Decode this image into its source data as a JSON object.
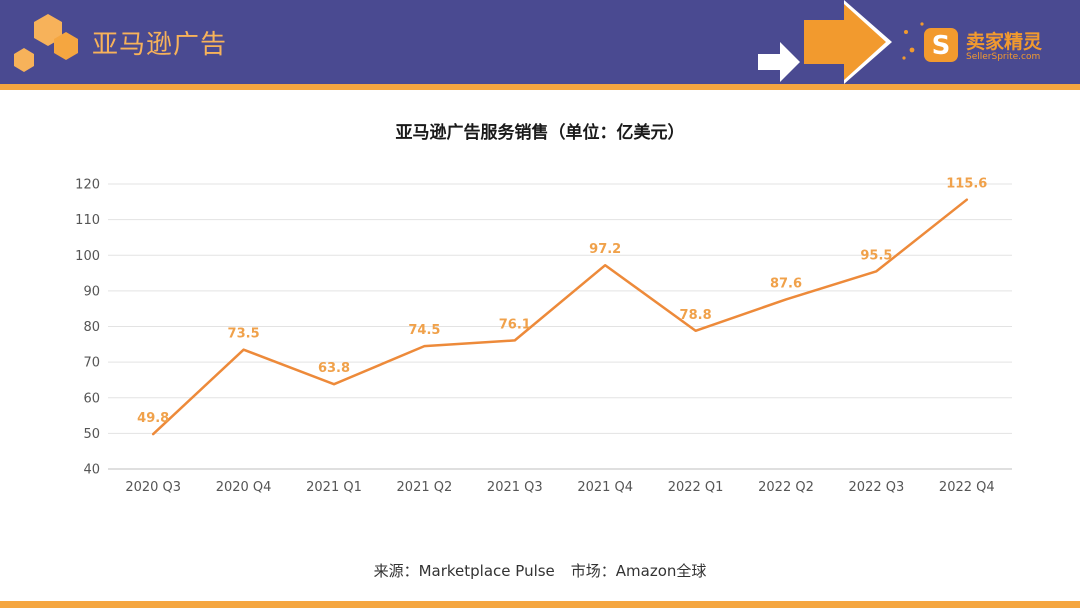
{
  "header": {
    "title": "亚马逊广告",
    "brand_name_cn": "卖家精灵",
    "brand_name_en": "SellerSprite.com",
    "bar_color": "#4a4a91",
    "accent_color": "#f5a640",
    "logo_icon": "hexagon-cluster-icon",
    "brand_icon": "sellersprite-s-icon",
    "nav_icon": "arrow-right-icon"
  },
  "chart_data": {
    "type": "line",
    "title": "亚马逊广告服务销售（单位：亿美元）",
    "categories": [
      "2020 Q3",
      "2020 Q4",
      "2021 Q1",
      "2021 Q2",
      "2021 Q3",
      "2021 Q4",
      "2022 Q1",
      "2022 Q2",
      "2022 Q3",
      "2022 Q4"
    ],
    "series": [
      {
        "values": [
          49.8,
          73.5,
          63.8,
          74.5,
          76.1,
          97.2,
          78.8,
          87.6,
          95.5,
          115.6
        ],
        "data_labels": [
          "49.8",
          "73.5",
          "63.8",
          "74.5",
          "76.1",
          "97.2",
          "78.8",
          "87.6",
          "95.5",
          "115.6"
        ],
        "color": "#ed8a3a"
      }
    ],
    "ylim": [
      40,
      120
    ],
    "yticks": [
      "40",
      "50",
      "60",
      "70",
      "80",
      "90",
      "100",
      "110",
      "120"
    ],
    "xlabel": "",
    "ylabel": "",
    "grid": true,
    "legend": "none"
  },
  "footer": {
    "source_label": "来源：Marketplace Pulse",
    "market_label": "市场：Amazon全球"
  }
}
